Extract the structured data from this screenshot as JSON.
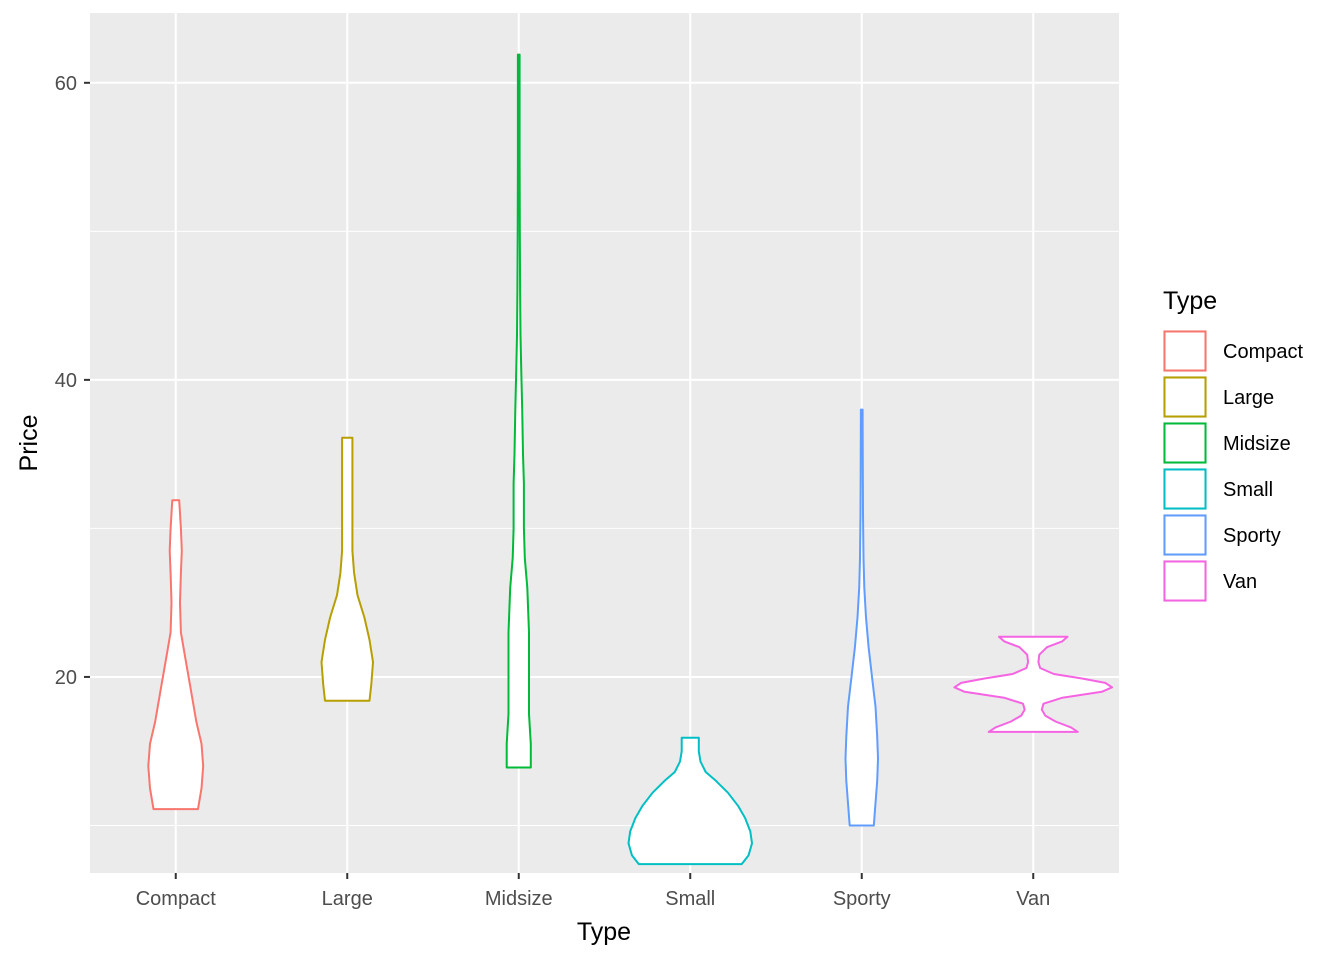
{
  "chart_data": {
    "type": "violin",
    "xlabel": "Type",
    "ylabel": "Price",
    "categories": [
      "Compact",
      "Large",
      "Midsize",
      "Small",
      "Sporty",
      "Van"
    ],
    "ylim": [
      6.8,
      64.7
    ],
    "yticks": [
      20,
      40,
      60
    ],
    "grid": true,
    "background": "#EBEBEB",
    "legend": {
      "title": "Type",
      "position": "right",
      "entries": [
        "Compact",
        "Large",
        "Midsize",
        "Small",
        "Sporty",
        "Van"
      ]
    },
    "series": [
      {
        "category": "Compact",
        "color": "#F8766D",
        "min": 11.1,
        "max": 31.9,
        "profile": [
          [
            11.1,
            0.13
          ],
          [
            12.5,
            0.15
          ],
          [
            14.0,
            0.16
          ],
          [
            15.5,
            0.15
          ],
          [
            17.0,
            0.12
          ],
          [
            19.0,
            0.09
          ],
          [
            21.0,
            0.06
          ],
          [
            23.0,
            0.03
          ],
          [
            25.0,
            0.025
          ],
          [
            27.0,
            0.03
          ],
          [
            28.5,
            0.035
          ],
          [
            30.0,
            0.03
          ],
          [
            31.9,
            0.02
          ]
        ]
      },
      {
        "category": "Large",
        "color": "#B79F00",
        "min": 18.4,
        "max": 36.1,
        "profile": [
          [
            18.4,
            0.13
          ],
          [
            19.5,
            0.14
          ],
          [
            21.0,
            0.15
          ],
          [
            22.5,
            0.13
          ],
          [
            24.0,
            0.1
          ],
          [
            25.5,
            0.06
          ],
          [
            27.0,
            0.04
          ],
          [
            28.5,
            0.03
          ],
          [
            30.0,
            0.03
          ],
          [
            32.0,
            0.03
          ],
          [
            34.0,
            0.03
          ],
          [
            36.1,
            0.03
          ]
        ]
      },
      {
        "category": "Midsize",
        "color": "#00BA38",
        "min": 13.9,
        "max": 61.9,
        "profile": [
          [
            13.9,
            0.07
          ],
          [
            15.5,
            0.07
          ],
          [
            17.5,
            0.06
          ],
          [
            20.0,
            0.06
          ],
          [
            23.0,
            0.06
          ],
          [
            26.0,
            0.05
          ],
          [
            28.0,
            0.035
          ],
          [
            30.0,
            0.03
          ],
          [
            33.0,
            0.03
          ],
          [
            35.0,
            0.025
          ],
          [
            38.0,
            0.02
          ],
          [
            40.5,
            0.015
          ],
          [
            43.0,
            0.01
          ],
          [
            46.0,
            0.008
          ],
          [
            50.0,
            0.006
          ],
          [
            55.0,
            0.005
          ],
          [
            61.9,
            0.005
          ]
        ]
      },
      {
        "category": "Small",
        "color": "#00BFC4",
        "min": 7.4,
        "max": 15.9,
        "profile": [
          [
            7.4,
            0.3
          ],
          [
            8.0,
            0.34
          ],
          [
            8.8,
            0.36
          ],
          [
            9.6,
            0.35
          ],
          [
            10.5,
            0.32
          ],
          [
            11.3,
            0.28
          ],
          [
            12.2,
            0.22
          ],
          [
            13.0,
            0.15
          ],
          [
            13.6,
            0.09
          ],
          [
            14.3,
            0.06
          ],
          [
            15.0,
            0.05
          ],
          [
            15.9,
            0.05
          ]
        ]
      },
      {
        "category": "Sporty",
        "color": "#619CFF",
        "min": 10.0,
        "max": 38.0,
        "profile": [
          [
            10.0,
            0.07
          ],
          [
            11.5,
            0.08
          ],
          [
            13.0,
            0.09
          ],
          [
            14.5,
            0.095
          ],
          [
            16.0,
            0.09
          ],
          [
            18.0,
            0.08
          ],
          [
            20.0,
            0.06
          ],
          [
            22.0,
            0.04
          ],
          [
            24.0,
            0.025
          ],
          [
            26.0,
            0.015
          ],
          [
            28.0,
            0.01
          ],
          [
            31.0,
            0.007
          ],
          [
            34.0,
            0.006
          ],
          [
            38.0,
            0.005
          ]
        ]
      },
      {
        "category": "Van",
        "color": "#F564E3",
        "min": 16.3,
        "max": 22.7,
        "profile": [
          [
            16.3,
            0.26
          ],
          [
            16.6,
            0.22
          ],
          [
            17.0,
            0.13
          ],
          [
            17.4,
            0.07
          ],
          [
            17.8,
            0.05
          ],
          [
            18.2,
            0.06
          ],
          [
            18.6,
            0.17
          ],
          [
            19.0,
            0.4
          ],
          [
            19.3,
            0.46
          ],
          [
            19.6,
            0.42
          ],
          [
            19.9,
            0.28
          ],
          [
            20.2,
            0.12
          ],
          [
            20.6,
            0.04
          ],
          [
            21.0,
            0.03
          ],
          [
            21.5,
            0.035
          ],
          [
            22.0,
            0.08
          ],
          [
            22.4,
            0.17
          ],
          [
            22.7,
            0.2
          ]
        ]
      }
    ]
  }
}
